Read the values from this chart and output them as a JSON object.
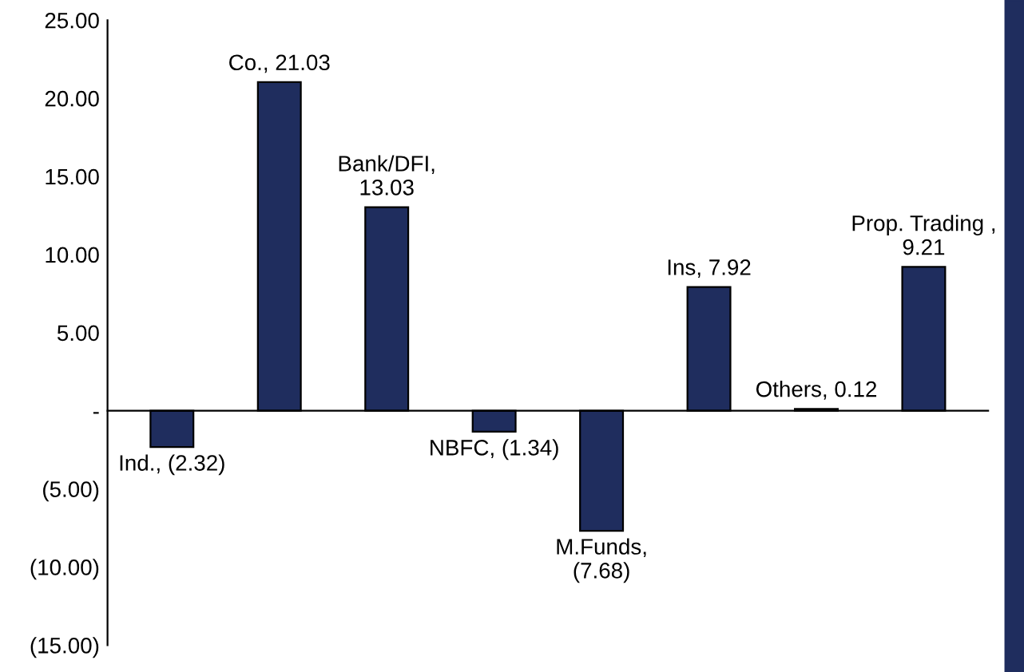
{
  "chart_data": {
    "type": "bar",
    "categories": [
      null,
      null,
      null,
      null,
      null,
      null,
      null,
      null
    ],
    "values": [
      -2.32,
      21.03,
      13.03,
      -1.34,
      -7.68,
      7.92,
      0.12,
      9.21
    ],
    "value_labels": [
      "Ind., (2.32)",
      "Co., 21.03",
      "Bank/DFI,\n13.03",
      "NBFC, (1.34)",
      "M.Funds,\n(7.68)",
      "Ins, 7.92",
      "Others, 0.12",
      "Prop. Trading ,\n9.21"
    ],
    "color": "#1f2d5e",
    "ylim": [
      -15,
      25
    ],
    "yticks": [
      {
        "value": 25,
        "label": "25.00"
      },
      {
        "value": 20,
        "label": "20.00"
      },
      {
        "value": 15,
        "label": "15.00"
      },
      {
        "value": 10,
        "label": "10.00"
      },
      {
        "value": 5,
        "label": "5.00"
      },
      {
        "value": 0,
        "label": "-"
      },
      {
        "value": -5,
        "label": "(5.00)"
      },
      {
        "value": -10,
        "label": "(10.00)"
      },
      {
        "value": -15,
        "label": "(15.00)"
      }
    ],
    "legend": false
  }
}
